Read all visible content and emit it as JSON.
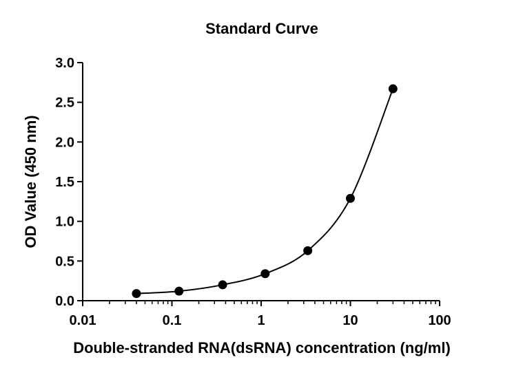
{
  "chart_data": {
    "type": "scatter",
    "title": "Standard Curve",
    "xlabel": "Double-stranded RNA(dsRNA) concentration (ng/ml)",
    "ylabel": "OD Value (450 nm)",
    "x_scale": "log",
    "xlim": [
      0.01,
      100
    ],
    "ylim": [
      0,
      3.0
    ],
    "x_ticks": [
      0.01,
      0.1,
      1,
      10,
      100
    ],
    "x_tick_labels": [
      "0.01",
      "0.1",
      "1",
      "10",
      "100"
    ],
    "y_ticks": [
      0,
      0.5,
      1.0,
      1.5,
      2.0,
      2.5,
      3.0
    ],
    "y_tick_labels": [
      "0.0",
      "0.5",
      "1.0",
      "1.5",
      "2.0",
      "2.5",
      "3.0"
    ],
    "grid": false,
    "series": [
      {
        "x": [
          0.04,
          0.12,
          0.37,
          1.11,
          3.33,
          10,
          30
        ],
        "y": [
          0.09,
          0.12,
          0.2,
          0.34,
          0.63,
          1.29,
          2.67
        ],
        "fit_curve": true
      }
    ]
  }
}
